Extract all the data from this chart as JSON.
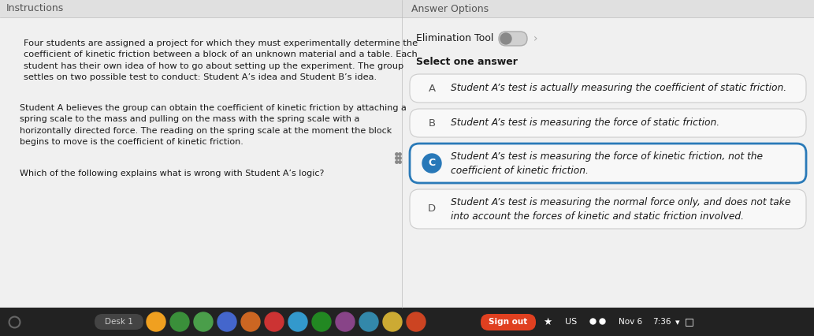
{
  "bg_color": "#c8c8c8",
  "left_header": "Instructions",
  "right_header": "Answer Options",
  "instruction_text_1": "Four students are assigned a project for which they must experimentally determine the\ncoefficient of kinetic friction between a block of an unknown material and a table. Each\nstudent has their own idea of how to go about setting up the experiment. The group\nsettles on two possible test to conduct: Student A’s idea and Student B’s idea.",
  "instruction_text_2": "Student A believes the group can obtain the coefficient of kinetic friction by attaching a\nspring scale to the mass and pulling on the mass with the spring scale with a\nhorizontally directed force. The reading on the spring scale at the moment the block\nbegins to move is the coefficient of kinetic friction.",
  "instruction_text_3": "Which of the following explains what is wrong with Student A’s logic?",
  "elim_tool_label": "Elimination Tool",
  "select_label": "Select one answer",
  "answers": [
    {
      "label": "A",
      "text": "Student A’s test is actually measuring the coefficient of static friction.",
      "selected": false,
      "two_lines": false
    },
    {
      "label": "B",
      "text": "Student A’s test is measuring the force of static friction.",
      "selected": false,
      "two_lines": false
    },
    {
      "label": "C",
      "text": "Student A’s test is measuring the force of kinetic friction, not the\ncoefficient of kinetic friction.",
      "selected": true,
      "two_lines": true
    },
    {
      "label": "D",
      "text": "Student A’s test is measuring the normal force only, and does not take\ninto account the forces of kinetic and static friction involved.",
      "selected": false,
      "two_lines": true
    }
  ],
  "selected_color": "#2a7ab8",
  "unselected_label_color": "#555555",
  "selected_label_bg": "#2878b8",
  "answer_box_selected_border": "#2a7ab8",
  "text_color": "#1a1a1a",
  "header_text_color": "#555555",
  "taskbar_bg": "#222222",
  "panel_bg": "#ffffff",
  "outer_bg": "#c8c8c8",
  "answer_bg": "#efefef",
  "header_strip_bg": "#e0e0e0"
}
